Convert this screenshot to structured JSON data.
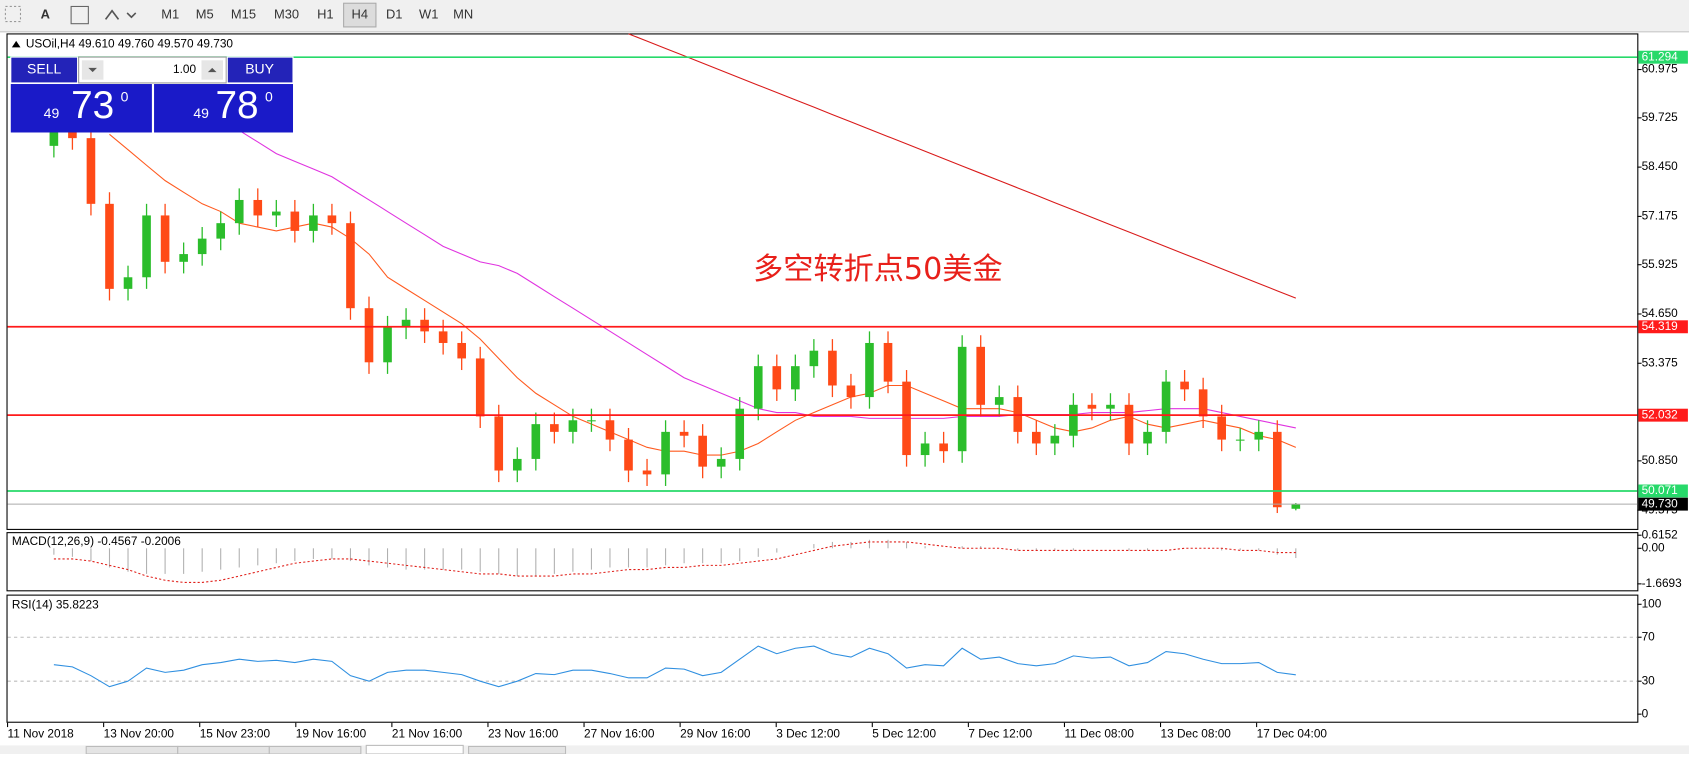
{
  "toolbar": {
    "text_tool": "A",
    "timeframes": [
      "M1",
      "M5",
      "M15",
      "M30",
      "H1",
      "H4",
      "D1",
      "W1",
      "MN"
    ]
  },
  "trade_panel": {
    "sell": "SELL",
    "buy": "BUY",
    "volume": "1.00",
    "sell_price": {
      "prefix": "49",
      "main": "73",
      "sup": "0"
    },
    "buy_price": {
      "prefix": "49",
      "main": "78",
      "sup": "0"
    }
  },
  "chart_data": {
    "type": "candlestick",
    "header": "USOil,H4  49.610 49.760 49.570 49.730",
    "annotation": "多空转折点50美金",
    "up_color": "#2bbd2b",
    "down_color": "#ff4a17",
    "ylim": [
      49.09,
      61.91
    ],
    "yticks": [
      60.975,
      59.725,
      {
        "value": 58.45,
        "label": "58.450"
      },
      57.175,
      55.925,
      {
        "value": 54.65,
        "label": "54.650"
      },
      53.375,
      {
        "value": 50.85,
        "label": "50.850"
      },
      49.575
    ],
    "levels": [
      {
        "value": 61.294,
        "color": "#27d96a"
      },
      {
        "value": 54.319,
        "color": "#ff1a1a"
      },
      {
        "value": 52.032,
        "color": "#ff1a1a"
      },
      {
        "value": 50.071,
        "color": "#27d96a"
      },
      {
        "value": 49.73,
        "label": "49.730",
        "color": "#000000"
      }
    ],
    "candles": [
      [
        59.0,
        59.7,
        58.7,
        59.4
      ],
      [
        59.4,
        59.7,
        58.9,
        59.2
      ],
      [
        59.2,
        59.5,
        57.2,
        57.5
      ],
      [
        57.5,
        57.8,
        55.0,
        55.3
      ],
      [
        55.3,
        55.9,
        55.0,
        55.6
      ],
      [
        55.6,
        57.5,
        55.3,
        57.2
      ],
      [
        57.2,
        57.5,
        55.7,
        56.0
      ],
      [
        56.0,
        56.5,
        55.7,
        56.2
      ],
      [
        56.2,
        56.9,
        55.9,
        56.6
      ],
      [
        56.6,
        57.3,
        56.3,
        57.0
      ],
      [
        57.0,
        57.9,
        56.7,
        57.6
      ],
      [
        57.6,
        57.9,
        56.9,
        57.2
      ],
      [
        57.2,
        57.6,
        56.9,
        57.3
      ],
      [
        57.3,
        57.6,
        56.5,
        56.8
      ],
      [
        56.8,
        57.5,
        56.5,
        57.2
      ],
      [
        57.2,
        57.5,
        56.7,
        57.0
      ],
      [
        57.0,
        57.3,
        54.5,
        54.8
      ],
      [
        54.8,
        55.1,
        53.1,
        53.4
      ],
      [
        53.4,
        54.6,
        53.1,
        54.3
      ],
      [
        54.3,
        54.8,
        54.0,
        54.5
      ],
      [
        54.5,
        54.8,
        53.9,
        54.2
      ],
      [
        54.2,
        54.5,
        53.6,
        53.9
      ],
      [
        53.9,
        54.2,
        53.2,
        53.5
      ],
      [
        53.5,
        53.8,
        51.7,
        52.0
      ],
      [
        52.0,
        52.3,
        50.3,
        50.6
      ],
      [
        50.6,
        51.2,
        50.3,
        50.9
      ],
      [
        50.9,
        52.1,
        50.6,
        51.8
      ],
      [
        51.8,
        52.1,
        51.3,
        51.6
      ],
      [
        51.6,
        52.2,
        51.3,
        51.9
      ],
      [
        51.9,
        52.2,
        51.6,
        51.9
      ],
      [
        51.9,
        52.2,
        51.1,
        51.4
      ],
      [
        51.4,
        51.7,
        50.3,
        50.6
      ],
      [
        50.6,
        50.9,
        50.2,
        50.5
      ],
      [
        50.5,
        51.9,
        50.2,
        51.6
      ],
      [
        51.6,
        51.9,
        51.2,
        51.5
      ],
      [
        51.5,
        51.8,
        50.4,
        50.7
      ],
      [
        50.7,
        51.2,
        50.4,
        50.9
      ],
      [
        50.9,
        52.5,
        50.6,
        52.2
      ],
      [
        52.2,
        53.6,
        51.9,
        53.3
      ],
      [
        53.3,
        53.6,
        52.4,
        52.7
      ],
      [
        52.7,
        53.6,
        52.4,
        53.3
      ],
      [
        53.3,
        54.0,
        53.0,
        53.7
      ],
      [
        53.7,
        54.0,
        52.5,
        52.8
      ],
      [
        52.8,
        53.1,
        52.2,
        52.5
      ],
      [
        52.5,
        54.2,
        52.2,
        53.9
      ],
      [
        53.9,
        54.2,
        52.6,
        52.9
      ],
      [
        52.9,
        53.2,
        50.7,
        51.0
      ],
      [
        51.0,
        51.6,
        50.7,
        51.3
      ],
      [
        51.3,
        51.6,
        50.8,
        51.1
      ],
      [
        51.1,
        54.1,
        50.8,
        53.8
      ],
      [
        53.8,
        54.1,
        52.0,
        52.3
      ],
      [
        52.3,
        52.8,
        52.0,
        52.5
      ],
      [
        52.5,
        52.8,
        51.3,
        51.6
      ],
      [
        51.6,
        51.9,
        51.0,
        51.3
      ],
      [
        51.3,
        51.8,
        51.0,
        51.5
      ],
      [
        51.5,
        52.6,
        51.2,
        52.3
      ],
      [
        52.3,
        52.6,
        51.9,
        52.2
      ],
      [
        52.2,
        52.6,
        51.9,
        52.3
      ],
      [
        52.3,
        52.6,
        51.0,
        51.3
      ],
      [
        51.3,
        51.9,
        51.0,
        51.6
      ],
      [
        51.6,
        53.2,
        51.3,
        52.9
      ],
      [
        52.9,
        53.2,
        52.4,
        52.7
      ],
      [
        52.7,
        53.0,
        51.7,
        52.0
      ],
      [
        52.0,
        52.3,
        51.1,
        51.4
      ],
      [
        51.4,
        51.7,
        51.1,
        51.4
      ],
      [
        51.4,
        51.9,
        51.1,
        51.6
      ],
      [
        51.6,
        51.9,
        49.5,
        49.65
      ],
      [
        49.61,
        49.76,
        49.57,
        49.73
      ]
    ],
    "moving_averages": [
      {
        "color": "#d91a1a",
        "values": [
          null,
          null,
          null,
          null,
          null,
          null,
          null,
          null,
          null,
          null,
          null,
          null,
          null,
          null,
          null,
          null,
          null,
          null,
          null,
          null,
          null,
          null,
          null,
          null,
          null,
          null,
          null,
          null,
          null,
          null,
          null,
          61.9,
          61.71,
          61.52,
          61.33,
          61.14,
          60.95,
          60.76,
          60.57,
          60.38,
          60.19,
          60.0,
          59.81,
          59.62,
          59.43,
          59.24,
          59.05,
          58.86,
          58.67,
          58.48,
          58.29,
          58.1,
          57.91,
          57.72,
          57.53,
          57.34,
          57.15,
          56.96,
          56.77,
          56.58,
          56.39,
          56.2,
          56.01,
          55.82,
          55.63,
          55.44,
          55.25,
          55.06
        ]
      },
      {
        "color": "#e033e0",
        "values": [
          null,
          null,
          null,
          null,
          null,
          null,
          null,
          null,
          null,
          null,
          59.4,
          59.1,
          58.8,
          58.6,
          58.4,
          58.2,
          57.9,
          57.6,
          57.3,
          57.0,
          56.7,
          56.4,
          56.2,
          56.0,
          55.9,
          55.7,
          55.4,
          55.1,
          54.8,
          54.5,
          54.2,
          53.9,
          53.6,
          53.3,
          53.0,
          52.8,
          52.6,
          52.4,
          52.2,
          52.1,
          52.1,
          52.0,
          52.0,
          52.0,
          51.95,
          51.95,
          51.95,
          51.95,
          51.95,
          52.0,
          52.0,
          52.0,
          52.05,
          52.05,
          52.05,
          52.05,
          52.1,
          52.1,
          52.1,
          52.15,
          52.2,
          52.2,
          52.2,
          52.1,
          52.0,
          51.9,
          51.8,
          51.7
        ]
      },
      {
        "color": "#ff5a1f",
        "values": [
          null,
          null,
          null,
          59.3,
          58.9,
          58.5,
          58.1,
          57.8,
          57.5,
          57.3,
          57.0,
          56.9,
          56.8,
          56.9,
          57.0,
          56.9,
          56.6,
          56.2,
          55.6,
          55.3,
          55.0,
          54.7,
          54.4,
          54.0,
          53.5,
          53.0,
          52.6,
          52.3,
          52.0,
          51.8,
          51.6,
          51.4,
          51.2,
          51.1,
          51.1,
          51.0,
          51.0,
          51.1,
          51.3,
          51.6,
          51.9,
          52.1,
          52.3,
          52.5,
          52.6,
          52.8,
          52.8,
          52.6,
          52.4,
          52.2,
          52.2,
          52.2,
          52.1,
          51.9,
          51.7,
          51.6,
          51.7,
          51.9,
          52.0,
          51.8,
          51.7,
          51.8,
          51.9,
          51.8,
          51.7,
          51.5,
          51.4,
          51.2
        ]
      }
    ],
    "x_labels": [
      "11 Nov 2018",
      "13 Nov 20:00",
      "15 Nov 23:00",
      "19 Nov 16:00",
      "21 Nov 16:00",
      "23 Nov 16:00",
      "27 Nov 16:00",
      "29 Nov 16:00",
      "3 Dec 12:00",
      "5 Dec 12:00",
      "7 Dec 12:00",
      "11 Dec 08:00",
      "13 Dec 08:00",
      "17 Dec 04:00"
    ],
    "macd": {
      "label": "MACD(12,26,9) -0.4567 -0.2006",
      "ylim": [
        -1.97,
        0.71
      ],
      "yticks": [
        0.6152,
        {
          "value": 0,
          "label": "0.00"
        },
        -1.6693
      ],
      "histogram_color": "#b0b0b0",
      "signal_color": "#e0201a",
      "histogram": [
        -0.3,
        -0.4,
        -0.6,
        -0.9,
        -1.1,
        -1.2,
        -1.2,
        -1.2,
        -1.1,
        -1.0,
        -0.9,
        -0.8,
        -0.7,
        -0.6,
        -0.5,
        -0.5,
        -0.6,
        -0.8,
        -0.9,
        -1.0,
        -1.0,
        -1.0,
        -1.0,
        -1.1,
        -1.2,
        -1.3,
        -1.3,
        -1.2,
        -1.1,
        -1.0,
        -0.9,
        -0.9,
        -0.9,
        -0.8,
        -0.7,
        -0.7,
        -0.7,
        -0.6,
        -0.4,
        -0.2,
        0.0,
        0.2,
        0.3,
        0.3,
        0.4,
        0.4,
        0.3,
        0.1,
        0.0,
        0.1,
        0.1,
        0.0,
        -0.1,
        -0.1,
        -0.1,
        -0.1,
        0.0,
        0.0,
        -0.1,
        -0.1,
        0.0,
        0.0,
        0.0,
        -0.1,
        -0.1,
        -0.1,
        -0.3,
        -0.4567
      ],
      "signal": [
        -0.5,
        -0.5,
        -0.6,
        -0.8,
        -1.0,
        -1.3,
        -1.5,
        -1.6,
        -1.6,
        -1.5,
        -1.3,
        -1.1,
        -0.9,
        -0.7,
        -0.6,
        -0.5,
        -0.5,
        -0.6,
        -0.7,
        -0.8,
        -0.9,
        -1.0,
        -1.1,
        -1.2,
        -1.2,
        -1.3,
        -1.3,
        -1.3,
        -1.2,
        -1.2,
        -1.1,
        -1.0,
        -1.0,
        -0.9,
        -0.9,
        -0.8,
        -0.8,
        -0.7,
        -0.6,
        -0.5,
        -0.3,
        -0.1,
        0.1,
        0.2,
        0.3,
        0.3,
        0.3,
        0.2,
        0.1,
        0.0,
        0.0,
        0.0,
        -0.1,
        -0.1,
        -0.1,
        -0.1,
        -0.1,
        -0.1,
        -0.1,
        -0.1,
        -0.1,
        0.0,
        0.0,
        0.0,
        -0.1,
        -0.1,
        -0.2,
        -0.2006
      ]
    },
    "rsi": {
      "label": "RSI(14) 35.8223",
      "ylim": [
        0,
        100
      ],
      "yticks": [
        100,
        70,
        30,
        0
      ],
      "levels": [
        70,
        30
      ],
      "color": "#2f8fe0",
      "values": [
        45,
        43,
        35,
        25,
        30,
        42,
        38,
        40,
        45,
        47,
        50,
        48,
        49,
        47,
        50,
        48,
        35,
        30,
        38,
        40,
        40,
        38,
        36,
        30,
        25,
        30,
        37,
        36,
        40,
        40,
        37,
        33,
        33,
        42,
        41,
        35,
        38,
        50,
        62,
        55,
        60,
        62,
        55,
        52,
        60,
        55,
        42,
        45,
        44,
        60,
        50,
        52,
        46,
        44,
        46,
        53,
        51,
        52,
        44,
        47,
        57,
        55,
        50,
        46,
        46,
        47,
        38,
        35.8223
      ]
    }
  }
}
